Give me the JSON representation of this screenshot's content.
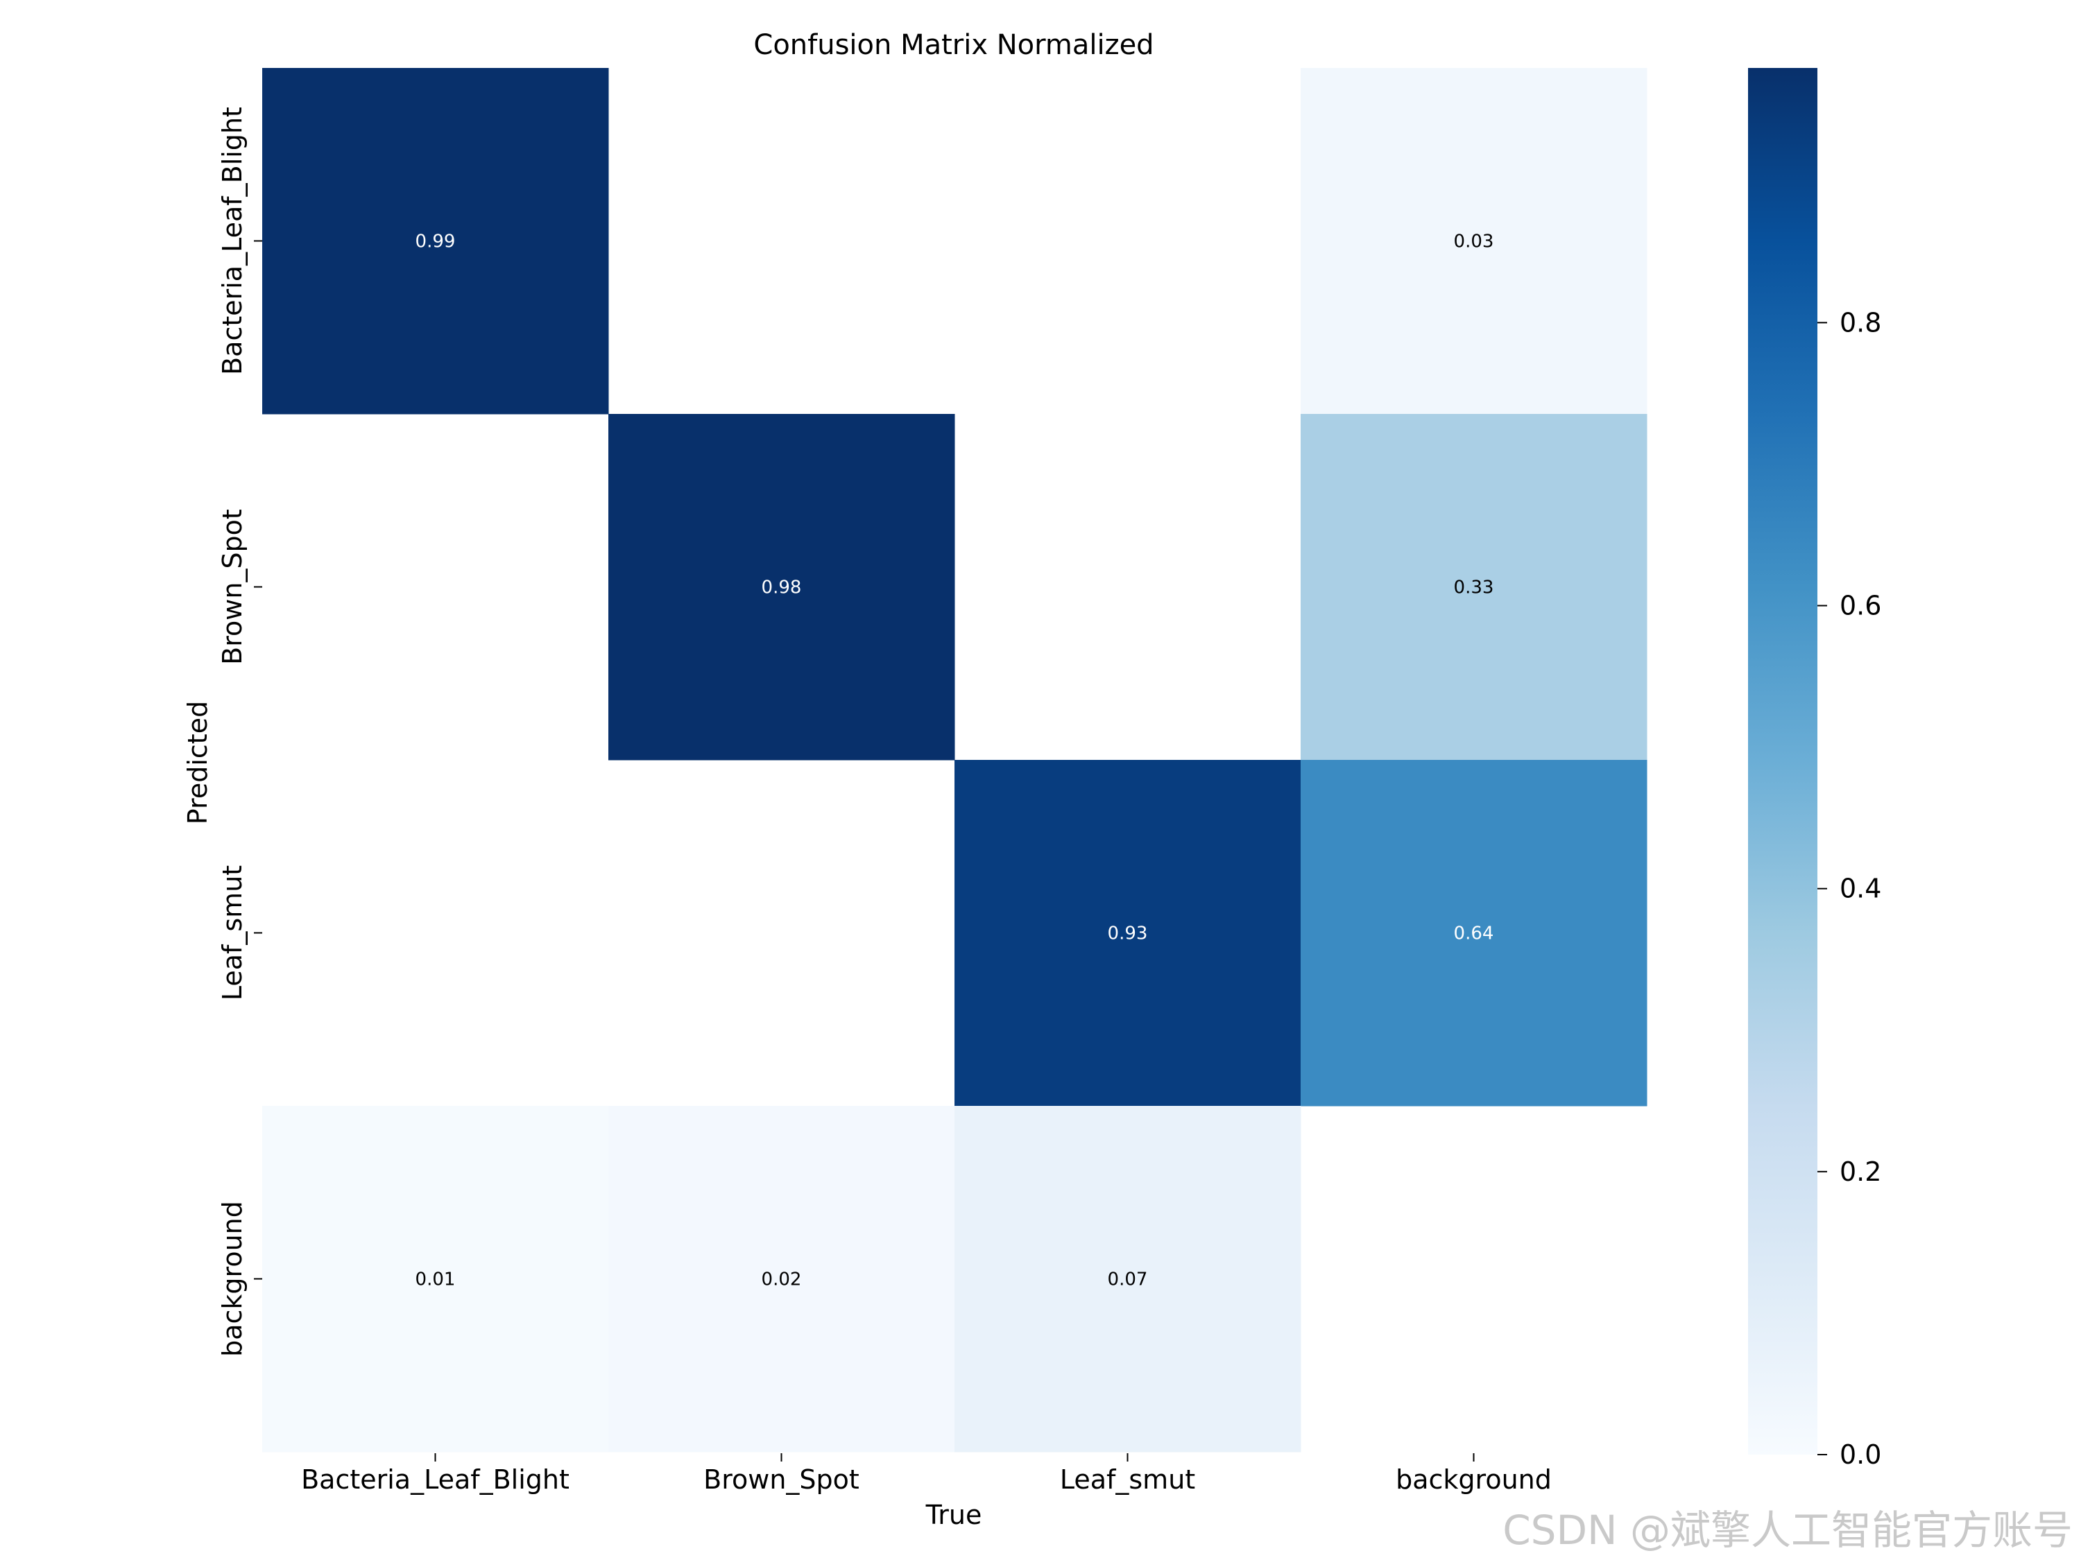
{
  "chart_data": {
    "type": "heatmap",
    "title": "Confusion Matrix Normalized",
    "xlabel": "True",
    "ylabel": "Predicted",
    "x_categories": [
      "Bacteria_Leaf_Blight",
      "Brown_Spot",
      "Leaf_smut",
      "background"
    ],
    "y_categories": [
      "Bacteria_Leaf_Blight",
      "Brown_Spot",
      "Leaf_smut",
      "background"
    ],
    "values": [
      [
        0.99,
        null,
        null,
        0.03
      ],
      [
        null,
        0.98,
        null,
        0.33
      ],
      [
        null,
        null,
        0.93,
        0.64
      ],
      [
        0.01,
        0.02,
        0.07,
        null
      ]
    ],
    "colormap": "Blues",
    "colorbar": {
      "range": [
        0,
        0.98
      ],
      "ticks": [
        0.0,
        0.2,
        0.4,
        0.6,
        0.8
      ],
      "tick_labels": [
        "0.0",
        "0.2",
        "0.4",
        "0.6",
        "0.8"
      ]
    },
    "grid": false
  },
  "watermark": "CSDN @斌擎人工智能官方账号"
}
